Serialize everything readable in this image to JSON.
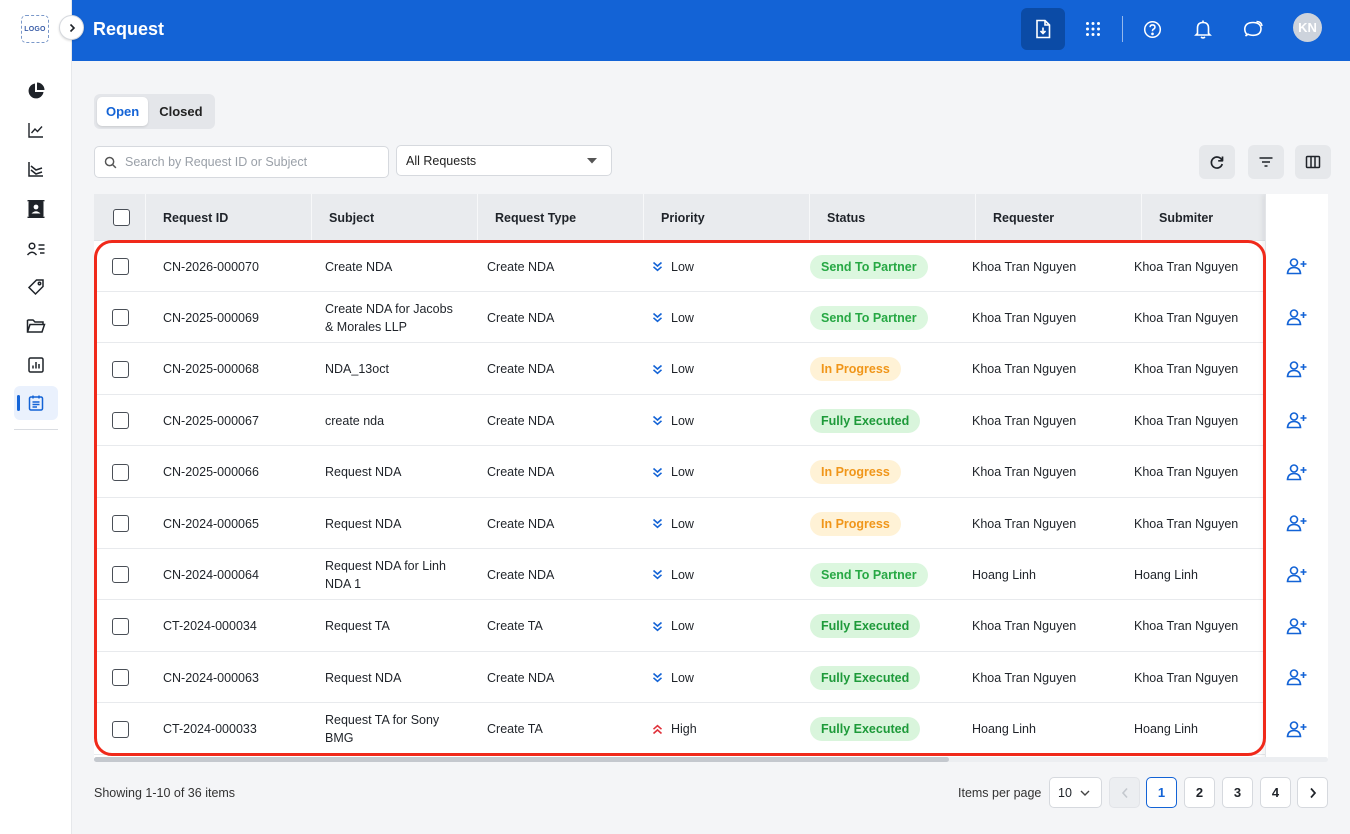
{
  "app": {
    "logo_text": "LOGO",
    "page_title": "Request",
    "avatar_initials": "KN"
  },
  "tabs": [
    {
      "label": "Open",
      "active": true
    },
    {
      "label": "Closed",
      "active": false
    }
  ],
  "search": {
    "placeholder": "Search by Request ID or Subject",
    "value": ""
  },
  "filter": {
    "selected": "All Requests"
  },
  "table": {
    "columns": [
      "Request ID",
      "Subject",
      "Request Type",
      "Priority",
      "Status",
      "Requester",
      "Submiter"
    ],
    "rows": [
      {
        "id": "CN-2026-000070",
        "subject": [
          "Create NDA"
        ],
        "type": "Create NDA",
        "priority": "Low",
        "status": "Send To Partner",
        "requester": "Khoa Tran Nguyen",
        "submitter": "Khoa Tran Nguyen"
      },
      {
        "id": "CN-2025-000069",
        "subject": [
          "Create NDA for Jacobs",
          "& Morales LLP"
        ],
        "type": "Create NDA",
        "priority": "Low",
        "status": "Send To Partner",
        "requester": "Khoa Tran Nguyen",
        "submitter": "Khoa Tran Nguyen"
      },
      {
        "id": "CN-2025-000068",
        "subject": [
          "NDA_13oct"
        ],
        "type": "Create NDA",
        "priority": "Low",
        "status": "In Progress",
        "requester": "Khoa Tran Nguyen",
        "submitter": "Khoa Tran Nguyen"
      },
      {
        "id": "CN-2025-000067",
        "subject": [
          "create nda"
        ],
        "type": "Create NDA",
        "priority": "Low",
        "status": "Fully Executed",
        "requester": "Khoa Tran Nguyen",
        "submitter": "Khoa Tran Nguyen"
      },
      {
        "id": "CN-2025-000066",
        "subject": [
          "Request NDA"
        ],
        "type": "Create NDA",
        "priority": "Low",
        "status": "In Progress",
        "requester": "Khoa Tran Nguyen",
        "submitter": "Khoa Tran Nguyen"
      },
      {
        "id": "CN-2024-000065",
        "subject": [
          "Request NDA"
        ],
        "type": "Create NDA",
        "priority": "Low",
        "status": "In Progress",
        "requester": "Khoa Tran Nguyen",
        "submitter": "Khoa Tran Nguyen"
      },
      {
        "id": "CN-2024-000064",
        "subject": [
          "Request NDA for Linh",
          "NDA 1"
        ],
        "type": "Create NDA",
        "priority": "Low",
        "status": "Send To Partner",
        "requester": "Hoang Linh",
        "submitter": "Hoang Linh"
      },
      {
        "id": "CT-2024-000034",
        "subject": [
          "Request TA"
        ],
        "type": "Create TA",
        "priority": "Low",
        "status": "Fully Executed",
        "requester": "Khoa Tran Nguyen",
        "submitter": "Khoa Tran Nguyen"
      },
      {
        "id": "CN-2024-000063",
        "subject": [
          "Request NDA"
        ],
        "type": "Create NDA",
        "priority": "Low",
        "status": "Fully Executed",
        "requester": "Khoa Tran Nguyen",
        "submitter": "Khoa Tran Nguyen"
      },
      {
        "id": "CT-2024-000033",
        "subject": [
          "Request TA for Sony",
          "BMG"
        ],
        "type": "Create TA",
        "priority": "High",
        "status": "Fully Executed",
        "requester": "Hoang Linh",
        "submitter": "Hoang Linh"
      }
    ]
  },
  "status_colors": {
    "Send To Partner": {
      "bg": "#dcf7df",
      "fg": "#27a844"
    },
    "In Progress": {
      "bg": "#fff2d6",
      "fg": "#f0961a"
    },
    "Fully Executed": {
      "bg": "#d9f5dc",
      "fg": "#1e9a3a"
    }
  },
  "priority_colors": {
    "Low": "#1363d6",
    "High": "#e0313a"
  },
  "footer": {
    "showing": "Showing 1-10 of 36 items",
    "items_per_page_label": "Items per page",
    "items_per_page": "10",
    "pages": [
      "1",
      "2",
      "3",
      "4"
    ],
    "current_page": "1"
  },
  "colors": {
    "brand": "#1363d6",
    "highlight": "#f0291a"
  },
  "icons": [
    "pie-chart-icon",
    "trend-chart-icon",
    "area-chart-icon",
    "contact-book-icon",
    "user-list-icon",
    "tag-icon",
    "folder-icon",
    "report-icon",
    "request-icon",
    "download-icon",
    "apps-grid-icon",
    "help-icon",
    "bell-icon",
    "chat-icon",
    "refresh-icon",
    "filter-icon",
    "columns-icon",
    "add-user-icon"
  ]
}
